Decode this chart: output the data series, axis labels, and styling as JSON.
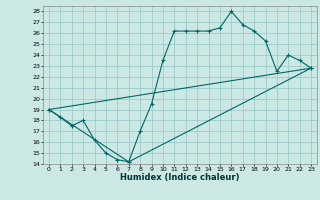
{
  "title": "",
  "xlabel": "Humidex (Indice chaleur)",
  "background_color": "#cce8e4",
  "grid_color": "#99cccc",
  "line_color": "#006666",
  "xlim": [
    -0.5,
    23.5
  ],
  "ylim": [
    14,
    28.5
  ],
  "xticks": [
    0,
    1,
    2,
    3,
    4,
    5,
    6,
    7,
    8,
    9,
    10,
    11,
    12,
    13,
    14,
    15,
    16,
    17,
    18,
    19,
    20,
    21,
    22,
    23
  ],
  "yticks": [
    14,
    15,
    16,
    17,
    18,
    19,
    20,
    21,
    22,
    23,
    24,
    25,
    26,
    27,
    28
  ],
  "series1_x": [
    0,
    1,
    2,
    3,
    4,
    5,
    6,
    7,
    8,
    9,
    10,
    11,
    12,
    13,
    14,
    15,
    16,
    17,
    18,
    19,
    20,
    21,
    22,
    23
  ],
  "series1_y": [
    19.0,
    18.3,
    17.5,
    18.0,
    16.2,
    15.0,
    14.4,
    14.2,
    17.0,
    19.5,
    23.5,
    26.2,
    26.2,
    26.2,
    26.2,
    26.5,
    28.0,
    26.8,
    26.2,
    25.3,
    22.5,
    24.0,
    23.5,
    22.8
  ],
  "series2_x": [
    0,
    7,
    23
  ],
  "series2_y": [
    19.0,
    14.2,
    22.8
  ],
  "series3_x": [
    0,
    23
  ],
  "series3_y": [
    19.0,
    22.8
  ]
}
